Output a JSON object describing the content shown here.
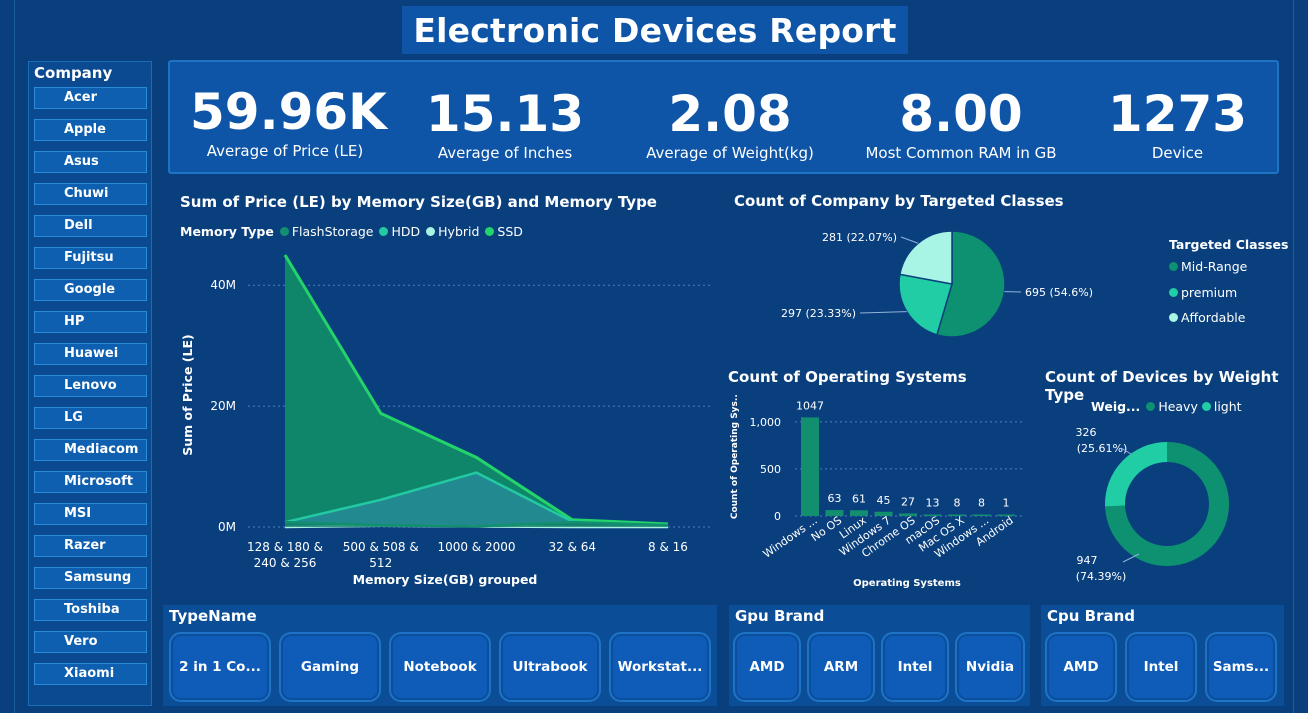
{
  "title": "Electronic Devices Report",
  "company": {
    "header": "Company",
    "items": [
      "Acer",
      "Apple",
      "Asus",
      "Chuwi",
      "Dell",
      "Fujitsu",
      "Google",
      "HP",
      "Huawei",
      "Lenovo",
      "LG",
      "Mediacom",
      "Microsoft",
      "MSI",
      "Razer",
      "Samsung",
      "Toshiba",
      "Vero",
      "Xiaomi"
    ]
  },
  "kpis": [
    {
      "value": "59.96K",
      "label": "Average of Price (LE)"
    },
    {
      "value": "15.13",
      "label": "Average of Inches"
    },
    {
      "value": "2.08",
      "label": "Average of Weight(kg)"
    },
    {
      "value": "8.00",
      "label": "Most Common RAM in GB"
    },
    {
      "value": "1273",
      "label": "Device"
    }
  ],
  "colors": {
    "flash": "#118f6e",
    "hdd": "#22c9a3",
    "hybrid": "#a8f3e3",
    "ssd": "#22d46a",
    "midrange": "#0e9170",
    "premium": "#20cda5",
    "affordable": "#a8f5e5",
    "heavy": "#0e9170",
    "light": "#20cda5"
  },
  "area_chart": {
    "title": "Sum of Price (LE) by Memory Size(GB) and Memory Type",
    "legend_title": "Memory Type",
    "legend": [
      "FlashStorage",
      "HDD",
      "Hybrid",
      "SSD"
    ],
    "ylabel": "Sum of Price (LE)",
    "xlabel": "Memory Size(GB) grouped",
    "yticks": [
      "40M",
      "20M",
      "0M"
    ],
    "chart_data": {
      "type": "area",
      "categories": [
        "128 & 180 & 240 & 256",
        "500 & 508 & 512",
        "1000 & 2000",
        "32 & 64",
        "8 & 16"
      ],
      "series": [
        {
          "name": "FlashStorage",
          "values": [
            0.8,
            0.3,
            0.1,
            0.8,
            0.3
          ]
        },
        {
          "name": "HDD",
          "values": [
            0.8,
            4.5,
            9.0,
            0.9,
            0.1
          ]
        },
        {
          "name": "Hybrid",
          "values": [
            0,
            0.2,
            0.1,
            0,
            0
          ]
        },
        {
          "name": "SSD",
          "values": [
            45.0,
            18.8,
            11.5,
            1.2,
            0.5
          ]
        }
      ],
      "ylim": [
        0,
        45
      ]
    }
  },
  "pie_classes": {
    "title": "Count of Company by Targeted Classes",
    "legend_title": "Targeted Classes",
    "legend": [
      "Mid-Range",
      "premium",
      "Affordable"
    ],
    "chart_data": {
      "type": "pie",
      "categories": [
        "Mid-Range",
        "premium",
        "Affordable"
      ],
      "values": [
        695,
        297,
        281
      ],
      "labels": [
        "695 (54.6%)",
        "297 (23.33%)",
        "281 (22.07%)"
      ]
    }
  },
  "bar_os": {
    "title": "Count of Operating Systems",
    "ylabel": "Count of Operating Sys...",
    "xlabel": "Operating Systems",
    "yticks": [
      "1,000",
      "500",
      "0"
    ],
    "chart_data": {
      "type": "bar",
      "categories": [
        "Windows ...",
        "No OS",
        "Linux",
        "Windows 7",
        "Chrome OS",
        "macOS",
        "Mac OS X",
        "Windows ...",
        "Android"
      ],
      "values": [
        1047,
        63,
        61,
        45,
        27,
        13,
        8,
        8,
        1
      ],
      "ylim": [
        0,
        1200
      ]
    }
  },
  "donut_weight": {
    "title": "Count of Devices by Weight Type",
    "legend_title": "Weig...",
    "legend": [
      "Heavy",
      "light"
    ],
    "chart_data": {
      "type": "pie",
      "categories": [
        "Heavy",
        "light"
      ],
      "values": [
        947,
        326
      ]
    },
    "label_heavy_1": "947",
    "label_heavy_2": "(74.39%)",
    "label_light_1": "326",
    "label_light_2": "(25.61%)"
  },
  "typename": {
    "header": "TypeName",
    "items": [
      "2 in 1 Co...",
      "Gaming",
      "Notebook",
      "Ultrabook",
      "Workstat..."
    ]
  },
  "gpu": {
    "header": "Gpu Brand",
    "items": [
      "AMD",
      "ARM",
      "Intel",
      "Nvidia"
    ]
  },
  "cpu": {
    "header": "Cpu Brand",
    "items": [
      "AMD",
      "Intel",
      "Sams..."
    ]
  }
}
